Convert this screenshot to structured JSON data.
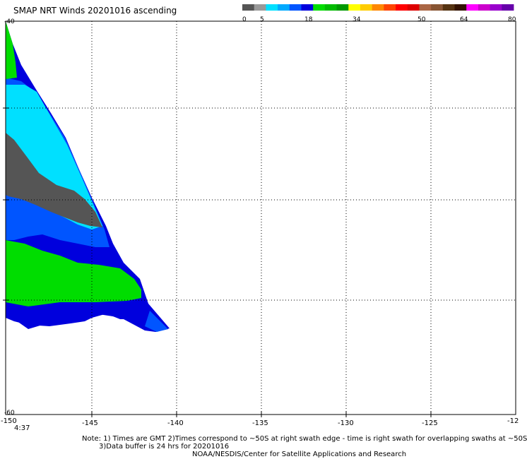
{
  "title": "SMAP NRT Winds 20201016 ascending",
  "colorbar": {
    "segments": [
      {
        "color": "#555555"
      },
      {
        "color": "#999999"
      },
      {
        "color": "#00e0ff"
      },
      {
        "color": "#00aaff"
      },
      {
        "color": "#0055ff"
      },
      {
        "color": "#0000dd"
      },
      {
        "color": "#00dd00"
      },
      {
        "color": "#00bb00"
      },
      {
        "color": "#009900"
      },
      {
        "color": "#ffff00"
      },
      {
        "color": "#ffcc00"
      },
      {
        "color": "#ff8800"
      },
      {
        "color": "#ff4400"
      },
      {
        "color": "#ff0000"
      },
      {
        "color": "#dd0000"
      },
      {
        "color": "#aa6644"
      },
      {
        "color": "#885533"
      },
      {
        "color": "#553311"
      },
      {
        "color": "#331100"
      },
      {
        "color": "#ff00ff"
      },
      {
        "color": "#cc00cc"
      },
      {
        "color": "#9900cc"
      },
      {
        "color": "#6600aa"
      }
    ],
    "ticks": [
      "0",
      "5",
      "18",
      "34",
      "50",
      "64",
      "80"
    ]
  },
  "map": {
    "lon_labels": [
      "-150",
      "-145",
      "-140",
      "-135",
      "-130",
      "-125",
      "-12"
    ],
    "lat_labels": [
      "-40",
      "-60"
    ],
    "swath_time": "4:37"
  },
  "notes": {
    "line1": "Note: 1) Times are GMT 2)Times correspond to ~50S at right swath edge - time is right swath for overlapping swaths at ~50S",
    "line2": "3)Data buffer is 24 hrs for 20201016",
    "line3": "NOAA/NESDIS/Center for Satellite Applications and Research"
  }
}
